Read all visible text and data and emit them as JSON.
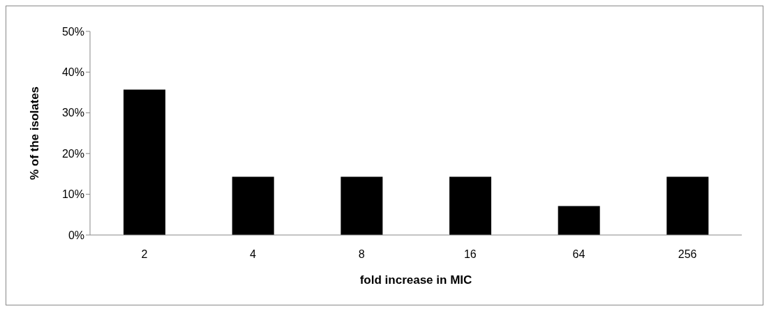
{
  "chart_data": {
    "type": "bar",
    "xlabel": "fold increase in MIC",
    "ylabel": "% of the isolates",
    "categories": [
      "2",
      "4",
      "8",
      "16",
      "64",
      "256"
    ],
    "values": [
      35.7,
      14.3,
      14.3,
      14.3,
      7.1,
      14.3
    ],
    "color": "#000000",
    "ylim": [
      0,
      50
    ],
    "yticks": [
      {
        "value": 0,
        "label": "0%"
      },
      {
        "value": 10,
        "label": "10%"
      },
      {
        "value": 20,
        "label": "20%"
      },
      {
        "value": 30,
        "label": "30%"
      },
      {
        "value": 40,
        "label": "40%"
      },
      {
        "value": 50,
        "label": "50%"
      }
    ],
    "grid": false,
    "legend": false
  }
}
